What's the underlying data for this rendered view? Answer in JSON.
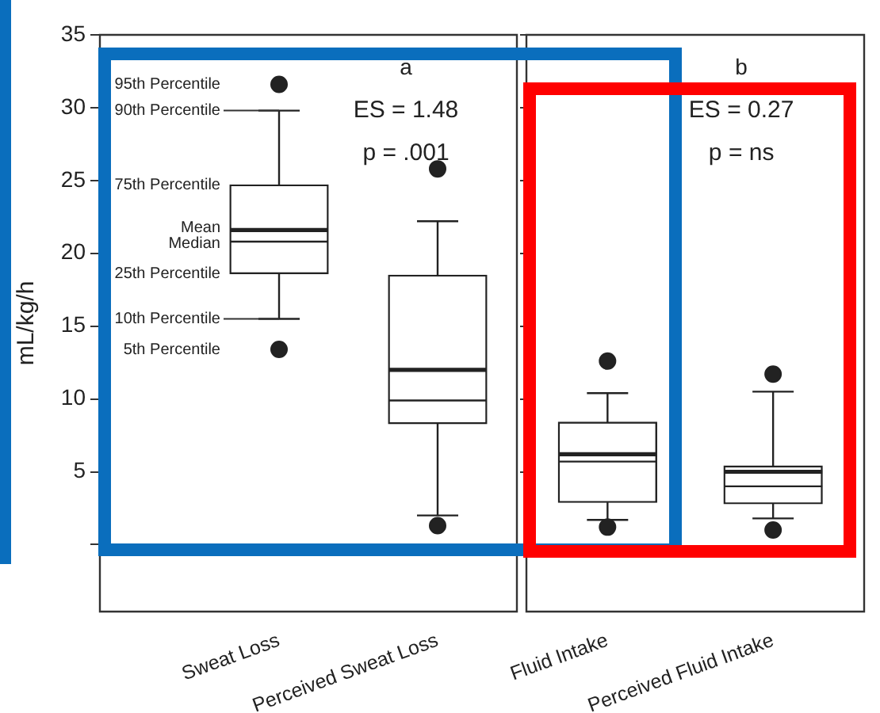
{
  "chart_data": [
    {
      "type": "box",
      "ylabel": "mL/kg/h",
      "categories": [
        "Sweat Loss",
        "Perceived Sweat Loss"
      ],
      "color": "#222222",
      "boxes": [
        {
          "low": 15.5,
          "q1": 18.6,
          "median": 20.8,
          "q3": 24.7,
          "high": 29.8,
          "mean": 21.6,
          "outliers": [
            31.6,
            13.4
          ]
        },
        {
          "low": 2.0,
          "q1": 8.3,
          "median": 9.9,
          "q3": 18.5,
          "high": 22.2,
          "mean": 12.0,
          "outliers": [
            25.8,
            1.3
          ]
        }
      ],
      "ylim": [
        -4.6,
        35
      ],
      "yticks": [
        {
          "value": 0,
          "label": null
        },
        5,
        10,
        15,
        20,
        25,
        30,
        35
      ],
      "grid": false,
      "annotations": [
        "a",
        "ES = 1.48",
        "p = .001",
        "95th Percentile",
        {
          "text": "90th Percentile",
          "x": "Sweat Loss",
          "y": 29.8
        },
        "75th Percentile",
        "Mean",
        "Median",
        "25th Percentile",
        {
          "text": "10th Percentile",
          "x": "Sweat Loss",
          "y": 15.5
        },
        "5th Percentile"
      ]
    },
    {
      "type": "box",
      "categories": [
        "Fluid Intake",
        "Perceived Fluid Intake"
      ],
      "color": "#222222",
      "boxes": [
        {
          "low": 1.7,
          "q1": 2.9,
          "median": 5.7,
          "q3": 8.4,
          "high": 10.4,
          "mean": 6.2,
          "outliers": [
            12.6,
            1.2
          ]
        },
        {
          "low": 1.8,
          "q1": 2.8,
          "median": 4.0,
          "q3": 5.4,
          "high": 10.5,
          "mean": 5.0,
          "outliers": [
            11.7,
            1.0
          ]
        }
      ],
      "ylim": [
        -4.6,
        35
      ],
      "yticks": [
        {
          "value": 0,
          "label": null
        },
        5,
        10,
        15,
        20,
        25,
        30,
        35
      ],
      "grid": false,
      "tick_labels": "x",
      "annotations": [
        "b",
        "ES = 0.27",
        "p = ns"
      ]
    }
  ]
}
